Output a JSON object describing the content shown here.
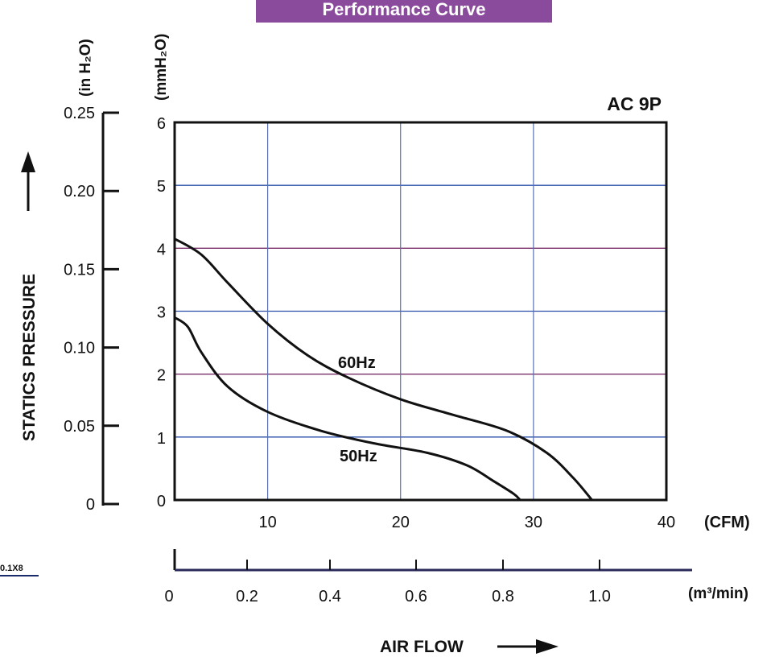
{
  "header": {
    "title": "Performance Curve"
  },
  "corner_label": "0.1X8",
  "chart_data": {
    "type": "line",
    "title": "AC 9P",
    "xlabel": "AIR FLOW",
    "x_unit": "(CFM)",
    "x_secondary_unit": "(m³/min)",
    "ylabel": "STATICS PRESSURE",
    "y_unit": "(mmH₂O)",
    "y_secondary_unit": "(in H₂O)",
    "xlim": [
      3,
      40
    ],
    "ylim": [
      0,
      6
    ],
    "x_ticks": [
      10,
      20,
      30,
      40
    ],
    "y_ticks": [
      0,
      1,
      2,
      3,
      4,
      5,
      6
    ],
    "y_secondary_ticks": [
      "0",
      "0.05",
      "0.10",
      "0.15",
      "0.20",
      "0.25"
    ],
    "x_secondary_ticks": [
      "0",
      "0.2",
      "0.4",
      "0.6",
      "0.8",
      "1.0"
    ],
    "grid": true,
    "series": [
      {
        "name": "60Hz",
        "x": [
          3,
          5,
          7,
          10,
          13,
          16,
          20,
          24,
          28,
          31,
          33,
          34.4
        ],
        "y": [
          4.15,
          3.9,
          3.45,
          2.8,
          2.3,
          1.95,
          1.6,
          1.35,
          1.1,
          0.75,
          0.35,
          0
        ]
      },
      {
        "name": "50Hz",
        "x": [
          3,
          4,
          5,
          7,
          10,
          14,
          18,
          22,
          25,
          27,
          28.5,
          29
        ],
        "y": [
          2.9,
          2.75,
          2.35,
          1.8,
          1.4,
          1.1,
          0.9,
          0.75,
          0.55,
          0.3,
          0.1,
          0
        ]
      }
    ]
  }
}
